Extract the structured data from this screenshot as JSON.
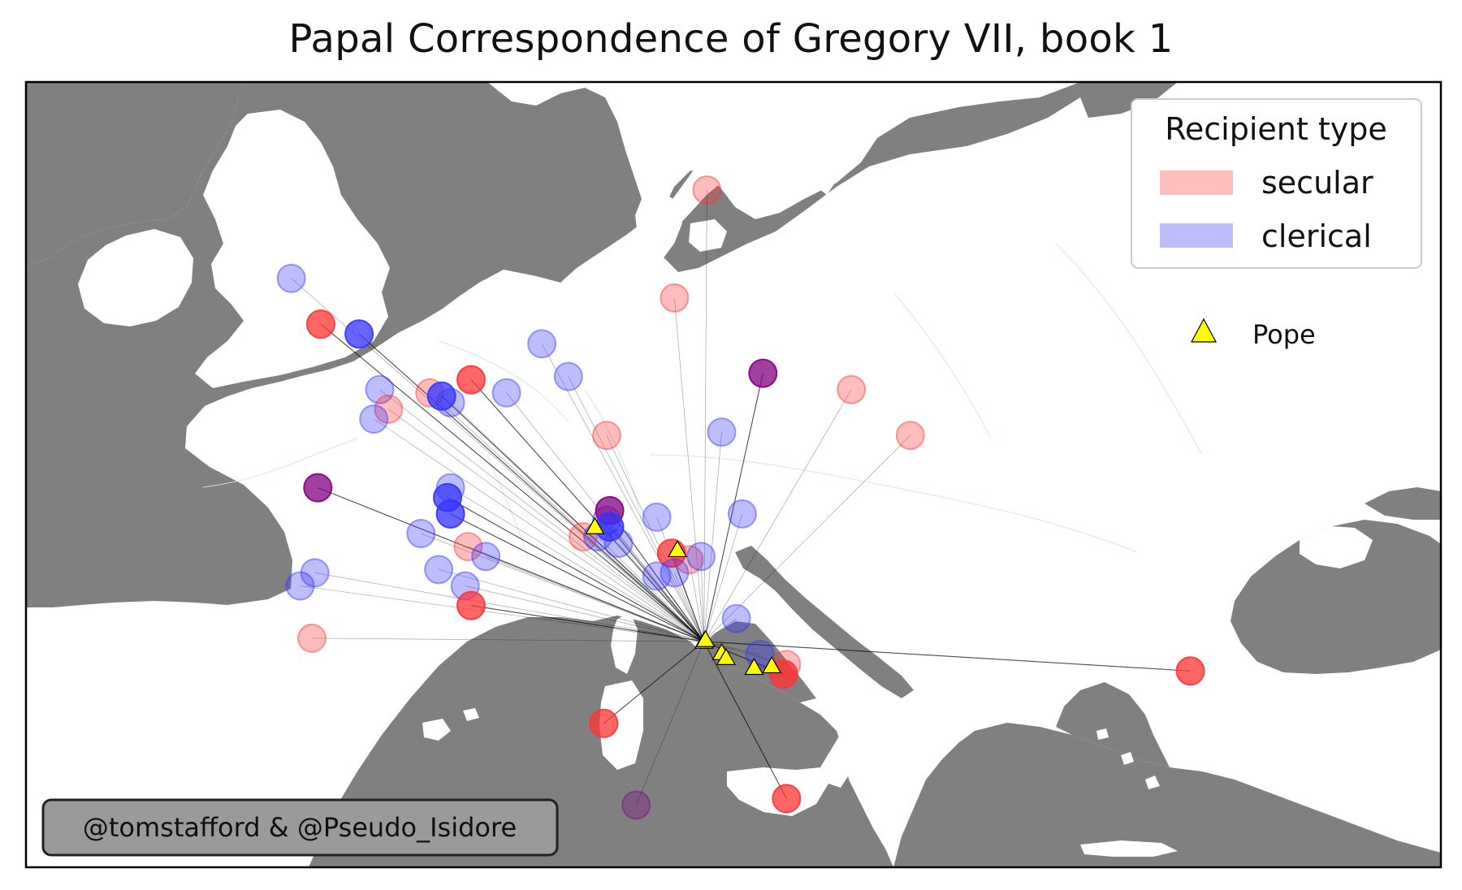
{
  "title": "Papal Correspondence of Gregory VII, book 1",
  "legend": {
    "title": "Recipient type",
    "items": [
      {
        "label": "secular",
        "color": "#ff9999"
      },
      {
        "label": "clerical",
        "color": "#9999ff"
      }
    ],
    "pope_label": "Pope",
    "pope_color": "#ffff00"
  },
  "credit": "@tomstafford & @Pseudo_Isidore",
  "colors": {
    "land": "#ffffff",
    "sea": "#808080",
    "secular": "#ff3333",
    "clerical": "#3333ff",
    "both": "#800080",
    "link": "#000000"
  },
  "map_extent": {
    "lon": [
      -10.5,
      37.5
    ],
    "lat": [
      35,
      59
    ]
  },
  "popes": [
    {
      "lon": 12.5,
      "lat": 41.9
    },
    {
      "lon": 12.55,
      "lat": 41.95
    },
    {
      "lon": 13.1,
      "lat": 41.55
    },
    {
      "lon": 13.25,
      "lat": 41.4
    },
    {
      "lon": 14.2,
      "lat": 41.1
    },
    {
      "lon": 14.8,
      "lat": 41.15
    },
    {
      "lon": 8.8,
      "lat": 45.4
    },
    {
      "lon": 11.6,
      "lat": 44.7
    }
  ],
  "recipients": [
    {
      "type": "clerical",
      "lon": -1.5,
      "lat": 53.0,
      "links": 1,
      "strong": false
    },
    {
      "type": "secular",
      "lon": -0.5,
      "lat": 51.6,
      "links": 1,
      "strong": true
    },
    {
      "type": "clerical",
      "lon": 0.8,
      "lat": 51.3,
      "links": 1,
      "strong": true
    },
    {
      "type": "clerical",
      "lon": 1.5,
      "lat": 49.6,
      "links": 1,
      "strong": false
    },
    {
      "type": "secular",
      "lon": 1.8,
      "lat": 49.0,
      "links": 1,
      "strong": false
    },
    {
      "type": "clerical",
      "lon": 1.3,
      "lat": 48.7,
      "links": 1,
      "strong": false
    },
    {
      "type": "secular",
      "lon": 3.2,
      "lat": 49.5,
      "links": 1,
      "strong": false
    },
    {
      "type": "clerical",
      "lon": 3.6,
      "lat": 49.4,
      "links": 1,
      "strong": true
    },
    {
      "type": "clerical",
      "lon": 3.9,
      "lat": 49.2,
      "links": 1,
      "strong": false
    },
    {
      "type": "secular",
      "lon": 4.6,
      "lat": 49.9,
      "links": 1,
      "strong": true
    },
    {
      "type": "clerical",
      "lon": 5.8,
      "lat": 49.5,
      "links": 1,
      "strong": false
    },
    {
      "type": "clerical",
      "lon": 7.0,
      "lat": 51.0,
      "links": 1,
      "strong": false
    },
    {
      "type": "clerical",
      "lon": 7.9,
      "lat": 50.0,
      "links": 1,
      "strong": false
    },
    {
      "type": "secular",
      "lon": 9.2,
      "lat": 48.2,
      "links": 1,
      "strong": false
    },
    {
      "type": "secular",
      "lon": 11.5,
      "lat": 52.4,
      "links": 1,
      "strong": false
    },
    {
      "type": "secular",
      "lon": 12.6,
      "lat": 55.7,
      "links": 1,
      "strong": false
    },
    {
      "type": "both",
      "lon": 14.5,
      "lat": 50.1,
      "links": 1,
      "strong": true
    },
    {
      "type": "secular",
      "lon": 17.5,
      "lat": 49.6,
      "links": 1,
      "strong": false
    },
    {
      "type": "secular",
      "lon": 19.5,
      "lat": 48.2,
      "links": 1,
      "strong": false
    },
    {
      "type": "clerical",
      "lon": 13.1,
      "lat": 48.3,
      "links": 1,
      "strong": false
    },
    {
      "type": "both",
      "lon": -0.6,
      "lat": 46.6,
      "links": 1,
      "strong": true
    },
    {
      "type": "clerical",
      "lon": 3.9,
      "lat": 46.6,
      "links": 1,
      "strong": false
    },
    {
      "type": "clerical",
      "lon": 3.8,
      "lat": 46.3,
      "links": 1,
      "strong": true
    },
    {
      "type": "clerical",
      "lon": 3.9,
      "lat": 45.8,
      "links": 1,
      "strong": true
    },
    {
      "type": "clerical",
      "lon": 2.9,
      "lat": 45.2,
      "links": 1,
      "strong": false
    },
    {
      "type": "secular",
      "lon": 4.5,
      "lat": 44.8,
      "links": 1,
      "strong": false
    },
    {
      "type": "clerical",
      "lon": 5.1,
      "lat": 44.5,
      "links": 1,
      "strong": false
    },
    {
      "type": "clerical",
      "lon": 3.5,
      "lat": 44.1,
      "links": 1,
      "strong": false
    },
    {
      "type": "clerical",
      "lon": 4.4,
      "lat": 43.6,
      "links": 1,
      "strong": false
    },
    {
      "type": "secular",
      "lon": 4.6,
      "lat": 43.0,
      "links": 1,
      "strong": true
    },
    {
      "type": "clerical",
      "lon": -0.7,
      "lat": 44.0,
      "links": 1,
      "strong": false
    },
    {
      "type": "clerical",
      "lon": -1.2,
      "lat": 43.6,
      "links": 1,
      "strong": false
    },
    {
      "type": "secular",
      "lon": -0.8,
      "lat": 42.0,
      "links": 1,
      "strong": false
    },
    {
      "type": "secular",
      "lon": 8.4,
      "lat": 45.1,
      "links": 1,
      "strong": false
    },
    {
      "type": "clerical",
      "lon": 8.9,
      "lat": 45.1,
      "links": 1,
      "strong": false
    },
    {
      "type": "clerical",
      "lon": 9.2,
      "lat": 45.6,
      "links": 1,
      "strong": false
    },
    {
      "type": "both",
      "lon": 9.3,
      "lat": 45.9,
      "links": 1,
      "strong": true
    },
    {
      "type": "clerical",
      "lon": 9.3,
      "lat": 45.4,
      "links": 1,
      "strong": true
    },
    {
      "type": "clerical",
      "lon": 9.6,
      "lat": 44.9,
      "links": 1,
      "strong": false
    },
    {
      "type": "clerical",
      "lon": 10.9,
      "lat": 45.7,
      "links": 1,
      "strong": false
    },
    {
      "type": "secular",
      "lon": 11.4,
      "lat": 44.6,
      "links": 1,
      "strong": true
    },
    {
      "type": "secular",
      "lon": 12.0,
      "lat": 44.4,
      "links": 1,
      "strong": false
    },
    {
      "type": "clerical",
      "lon": 12.4,
      "lat": 44.5,
      "links": 1,
      "strong": false
    },
    {
      "type": "clerical",
      "lon": 11.5,
      "lat": 44.0,
      "links": 1,
      "strong": false
    },
    {
      "type": "clerical",
      "lon": 10.9,
      "lat": 43.9,
      "links": 1,
      "strong": false
    },
    {
      "type": "clerical",
      "lon": 13.8,
      "lat": 45.8,
      "links": 1,
      "strong": false
    },
    {
      "type": "clerical",
      "lon": 13.6,
      "lat": 42.6,
      "links": 1,
      "strong": false
    },
    {
      "type": "clerical",
      "lon": 14.4,
      "lat": 41.5,
      "links": 1,
      "strong": false
    },
    {
      "type": "secular",
      "lon": 15.3,
      "lat": 41.2,
      "links": 1,
      "strong": false
    },
    {
      "type": "secular",
      "lon": 15.2,
      "lat": 40.9,
      "links": 1,
      "strong": true
    },
    {
      "type": "secular",
      "lon": 9.1,
      "lat": 39.4,
      "links": 1,
      "strong": true
    },
    {
      "type": "secular",
      "lon": 15.3,
      "lat": 37.1,
      "links": 1,
      "strong": true
    },
    {
      "type": "both",
      "lon": 10.2,
      "lat": 36.9,
      "links": 1,
      "strong": false
    },
    {
      "type": "secular",
      "lon": 29.0,
      "lat": 41.0,
      "links": 1,
      "strong": true
    }
  ]
}
